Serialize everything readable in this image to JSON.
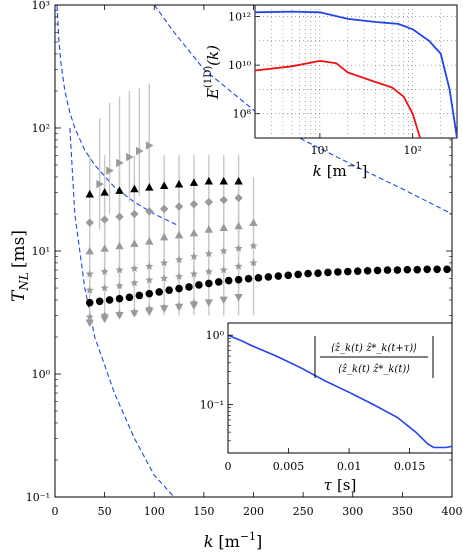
{
  "chart_data": [
    {
      "type": "scatter",
      "panel": "main",
      "xlabel": "k [m⁻¹]",
      "ylabel": "T_NL [ms]",
      "xscale": "linear",
      "yscale": "log",
      "xlim": [
        0,
        400
      ],
      "ylim": [
        0.1,
        1000
      ],
      "x_ticks": [
        "0",
        "50",
        "100",
        "150",
        "200",
        "250",
        "300",
        "350",
        "400"
      ],
      "y_ticks": [
        "10⁻¹",
        "10⁰",
        "10¹",
        "10²",
        "10³"
      ],
      "grid": false,
      "colors": {
        "black_series": "#000000",
        "gray_series": "#9a9a9a",
        "errorbar": "#c8c8c8",
        "dashed": "#2244ee"
      },
      "series": [
        {
          "marker": "triangle-right",
          "color": "gray",
          "x": [
            45,
            55,
            65,
            75,
            85,
            95
          ],
          "y": [
            35,
            45,
            52,
            58,
            65,
            72
          ],
          "err_hi": [
            120,
            160,
            180,
            200,
            210,
            230
          ],
          "err_lo": [
            15,
            20,
            22,
            25,
            28,
            30
          ]
        },
        {
          "marker": "triangle-up",
          "color": "black",
          "x": [
            35,
            50,
            65,
            80,
            95,
            110,
            125,
            140,
            155,
            170,
            185
          ],
          "y": [
            29,
            30,
            31,
            32,
            33,
            34,
            35,
            36,
            37,
            37,
            37
          ]
        },
        {
          "marker": "diamond",
          "color": "gray",
          "x": [
            35,
            50,
            65,
            80,
            95,
            110,
            125,
            140,
            155,
            170,
            185
          ],
          "y": [
            17,
            18,
            19,
            20,
            21,
            22,
            23,
            24,
            25,
            26,
            27
          ],
          "err_hi": [
            60,
            60,
            60,
            60,
            60,
            60,
            60,
            60,
            60,
            60,
            60
          ],
          "err_lo": [
            5,
            5,
            5,
            5,
            5,
            5,
            5,
            5,
            5,
            5,
            5
          ]
        },
        {
          "marker": "triangle-up",
          "color": "gray",
          "x": [
            35,
            50,
            65,
            80,
            95,
            110,
            125,
            140,
            155,
            170,
            185,
            200
          ],
          "y": [
            10,
            10.5,
            11,
            11.5,
            12,
            13,
            13.5,
            14,
            15,
            15.5,
            16,
            17
          ],
          "err_hi": [
            40,
            40,
            40,
            40,
            40,
            40,
            40,
            40,
            40,
            40,
            40,
            40
          ],
          "err_lo": [
            3,
            3,
            3,
            3,
            3,
            3,
            3,
            3,
            3,
            3,
            3,
            3
          ]
        },
        {
          "marker": "star",
          "color": "gray",
          "x": [
            35,
            50,
            65,
            80,
            95,
            110,
            125,
            140,
            155,
            170,
            185,
            200
          ],
          "y": [
            6.5,
            6.8,
            7,
            7.2,
            7.5,
            8,
            8.5,
            9,
            9.5,
            10,
            10.5,
            11
          ]
        },
        {
          "marker": "star",
          "color": "gray",
          "x": [
            35,
            50,
            65,
            80,
            95,
            110,
            125,
            140,
            155,
            170,
            185,
            200
          ],
          "y": [
            4.8,
            5,
            5.2,
            5.5,
            5.8,
            6,
            6.2,
            6.5,
            6.8,
            7,
            7.5,
            8
          ]
        },
        {
          "marker": "triangle-down",
          "color": "gray",
          "x": [
            35,
            50,
            65,
            80,
            95,
            110,
            125,
            140,
            155,
            170,
            185
          ],
          "y": [
            2.6,
            2.8,
            3,
            3.1,
            3.2,
            3.4,
            3.5,
            3.6,
            3.8,
            4,
            4.2
          ]
        },
        {
          "marker": "star",
          "color": "gray",
          "x": [
            35,
            50,
            65,
            80,
            95,
            110,
            125,
            140
          ],
          "y": [
            2.9,
            3,
            3.1,
            3.2,
            3.4,
            3.5,
            3.6,
            3.8
          ]
        },
        {
          "marker": "circle",
          "color": "black",
          "x": [
            35,
            45,
            55,
            65,
            75,
            85,
            95,
            105,
            115,
            125,
            135,
            145,
            155,
            165,
            175,
            185,
            195,
            205,
            215,
            225,
            235,
            245,
            255,
            265,
            275,
            285,
            295,
            305,
            315,
            325,
            335,
            345,
            355,
            365,
            375,
            385,
            395
          ],
          "y": [
            3.8,
            3.9,
            4.0,
            4.1,
            4.2,
            4.35,
            4.5,
            4.65,
            4.8,
            4.95,
            5.1,
            5.3,
            5.45,
            5.6,
            5.75,
            5.85,
            5.95,
            6.05,
            6.15,
            6.25,
            6.35,
            6.45,
            6.55,
            6.6,
            6.7,
            6.75,
            6.8,
            6.85,
            6.9,
            6.95,
            7.0,
            7.0,
            7.05,
            7.05,
            7.1,
            7.1,
            7.1
          ]
        },
        {
          "line": "dashed",
          "label": "",
          "x": [
            2,
            4,
            6,
            10,
            15,
            20,
            30,
            40,
            60,
            80,
            100,
            120,
            125
          ],
          "y": [
            1000,
            500,
            333,
            200,
            133,
            100,
            66,
            50,
            33,
            25,
            20,
            16.7,
            16
          ]
        },
        {
          "line": "dashed",
          "label": "",
          "x": [
            15,
            20,
            30,
            40,
            60,
            80,
            100,
            120
          ],
          "y": [
            100,
            20,
            5,
            2,
            0.7,
            0.3,
            0.15,
            0.1
          ]
        },
        {
          "line": "dashed",
          "label": "",
          "x": [
            100,
            120,
            150,
            200,
            250,
            300,
            350,
            400
          ],
          "y": [
            1000,
            600,
            300,
            140,
            80,
            50,
            32,
            20
          ]
        }
      ]
    },
    {
      "type": "line",
      "panel": "inset-top",
      "xlabel": "k [m⁻¹]",
      "ylabel": "E^(1D)(k)",
      "xscale": "log",
      "yscale": "log",
      "xlim": [
        2,
        300
      ],
      "ylim": [
        10000000.0,
        3000000000000.0
      ],
      "x_ticks": [
        "10¹",
        "10²"
      ],
      "y_ticks": [
        "10⁸",
        "10¹⁰",
        "10¹²"
      ],
      "grid": true,
      "series": [
        {
          "color": "#2244ee",
          "x": [
            2,
            5,
            10,
            20,
            40,
            70,
            100,
            150,
            200,
            250,
            300
          ],
          "y": [
            1500000000000.0,
            1600000000000.0,
            1500000000000.0,
            800000000000.0,
            600000000000.0,
            500000000000.0,
            300000000000.0,
            100000000000.0,
            30000000000.0,
            1000000000.0,
            10000000.0
          ]
        },
        {
          "color": "#ee1111",
          "x": [
            2,
            5,
            10,
            15,
            20,
            40,
            60,
            80,
            100,
            120,
            150
          ],
          "y": [
            6000000000.0,
            9000000000.0,
            15000000000.0,
            12000000000.0,
            5000000000.0,
            2000000000.0,
            1200000000.0,
            500000000.0,
            100000000.0,
            10000000.0,
            1000000.0
          ]
        }
      ]
    },
    {
      "type": "line",
      "panel": "inset-bottom",
      "xlabel": "τ [s]",
      "ylabel": "|⟨ẑ_k(t) ẑ*_k(t+τ)⟩ / ⟨ẑ_k(t) ẑ*_k(t)⟩|",
      "xscale": "linear",
      "yscale": "log",
      "xlim": [
        0,
        0.0185
      ],
      "ylim": [
        0.02,
        1.5
      ],
      "x_ticks": [
        "0",
        "0.005",
        "0.01",
        "0.015"
      ],
      "y_ticks": [
        "10⁻¹",
        "10⁰"
      ],
      "grid": false,
      "series": [
        {
          "color": "#2244ee",
          "x": [
            0,
            0.001,
            0.002,
            0.004,
            0.006,
            0.008,
            0.01,
            0.012,
            0.014,
            0.0155,
            0.0165,
            0.017,
            0.018,
            0.0185
          ],
          "y": [
            1.0,
            0.85,
            0.7,
            0.5,
            0.34,
            0.22,
            0.15,
            0.1,
            0.065,
            0.04,
            0.027,
            0.024,
            0.024,
            0.025
          ]
        }
      ]
    }
  ],
  "texts": {
    "main_ylabel_base": "T",
    "main_ylabel_sub": "NL",
    "main_ylabel_unit": "[ms]",
    "main_xlabel_base": "k",
    "main_xlabel_unit": "[m",
    "main_xlabel_exp": "−1",
    "main_xlabel_close": "]",
    "inset1_ylabel_base": "E",
    "inset1_ylabel_sup": "(1D)",
    "inset1_ylabel_arg": "(k)",
    "inset1_xlabel_base": "k",
    "inset1_xlabel_unit": "[m",
    "inset1_xlabel_exp": "−1",
    "inset1_xlabel_close": "]",
    "inset2_xlabel_base": "τ",
    "inset2_xlabel_unit": "[s]",
    "inset2_numerator": "⟨ẑ_k(t) ẑ*_k(t+τ)⟩",
    "inset2_denominator": "⟨ẑ_k(t) ẑ*_k(t)⟩"
  }
}
